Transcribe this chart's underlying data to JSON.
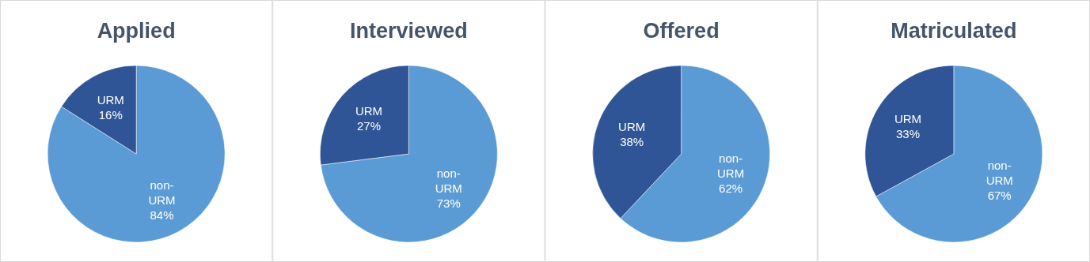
{
  "chart_data": [
    {
      "type": "pie",
      "title": "Applied",
      "categories": [
        "non-URM",
        "URM"
      ],
      "values": [
        84,
        16
      ],
      "value_labels": [
        "84%",
        "16%"
      ],
      "colors": [
        "#5b9bd5",
        "#2f5597"
      ]
    },
    {
      "type": "pie",
      "title": "Interviewed",
      "categories": [
        "non-URM",
        "URM"
      ],
      "values": [
        73,
        27
      ],
      "value_labels": [
        "73%",
        "27%"
      ],
      "colors": [
        "#5b9bd5",
        "#2f5597"
      ]
    },
    {
      "type": "pie",
      "title": "Offered",
      "categories": [
        "non-URM",
        "URM"
      ],
      "values": [
        62,
        38
      ],
      "value_labels": [
        "62%",
        "38%"
      ],
      "colors": [
        "#5b9bd5",
        "#2f5597"
      ]
    },
    {
      "type": "pie",
      "title": "Matriculated",
      "categories": [
        "non-URM",
        "URM"
      ],
      "values": [
        67,
        33
      ],
      "value_labels": [
        "67%",
        "33%"
      ],
      "colors": [
        "#5b9bd5",
        "#2f5597"
      ]
    }
  ]
}
